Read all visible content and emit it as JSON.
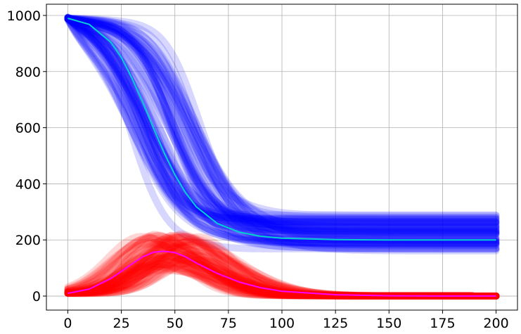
{
  "chart_data": {
    "type": "line",
    "title": "",
    "xlabel": "",
    "ylabel": "",
    "xlim": [
      -10,
      210
    ],
    "ylim": [
      -50,
      1040
    ],
    "xticks": [
      0,
      25,
      50,
      75,
      100,
      125,
      150,
      175,
      200
    ],
    "yticks": [
      0,
      200,
      400,
      600,
      800,
      1000
    ],
    "grid": true,
    "legend": "none",
    "description_counts": {
      "simulated_runs_per_group": 60
    },
    "groups": [
      {
        "id": "susceptible",
        "style": "many translucent simulated trajectories",
        "color": "#0000ff",
        "start": 990,
        "end_range": [
          155,
          290
        ],
        "midpoint_range": [
          28,
          62
        ]
      },
      {
        "id": "infected",
        "style": "many translucent simulated trajectories",
        "color": "#ff0000",
        "start": 10,
        "peak_range": [
          95,
          220
        ],
        "peak_time_range": [
          36,
          60
        ]
      }
    ],
    "series": [
      {
        "id": "susceptible_mean",
        "color": "#00d0d0",
        "x": [
          0,
          10,
          20,
          25,
          30,
          35,
          40,
          45,
          50,
          55,
          60,
          70,
          80,
          90,
          100,
          125,
          150,
          175,
          200
        ],
        "y": [
          990,
          968,
          905,
          850,
          776,
          690,
          598,
          510,
          432,
          368,
          318,
          258,
          228,
          213,
          206,
          201,
          200,
          200,
          200
        ]
      },
      {
        "id": "infected_mean",
        "color": "#ff00ff",
        "x": [
          0,
          10,
          20,
          25,
          30,
          35,
          40,
          45,
          50,
          55,
          60,
          70,
          80,
          90,
          100,
          125,
          150,
          175,
          200
        ],
        "y": [
          10,
          25,
          62,
          88,
          115,
          140,
          156,
          160,
          155,
          140,
          118,
          80,
          50,
          30,
          17,
          5,
          1,
          0,
          0
        ]
      }
    ]
  }
}
